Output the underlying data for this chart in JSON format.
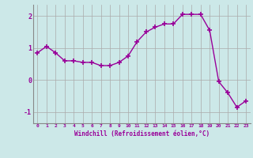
{
  "x": [
    0,
    1,
    2,
    3,
    4,
    5,
    6,
    7,
    8,
    9,
    10,
    11,
    12,
    13,
    14,
    15,
    16,
    17,
    18,
    19,
    20,
    21,
    22,
    23
  ],
  "y": [
    0.85,
    1.05,
    0.85,
    0.6,
    0.6,
    0.55,
    0.55,
    0.45,
    0.45,
    0.55,
    0.75,
    1.2,
    1.5,
    1.65,
    1.75,
    1.75,
    2.05,
    2.05,
    2.05,
    1.55,
    -0.05,
    -0.4,
    -0.85,
    -0.65
  ],
  "line_color": "#990099",
  "marker": "+",
  "bg_color": "#cce8e8",
  "grid_color": "#aaaaaa",
  "xlabel": "Windchill (Refroidissement éolien,°C)",
  "xlabel_color": "#990099",
  "ylabel_color": "#990099",
  "yticks": [
    -1,
    0,
    1,
    2
  ],
  "xticks": [
    0,
    1,
    2,
    3,
    4,
    5,
    6,
    7,
    8,
    9,
    10,
    11,
    12,
    13,
    14,
    15,
    16,
    17,
    18,
    19,
    20,
    21,
    22,
    23
  ],
  "ylim": [
    -1.35,
    2.35
  ],
  "xlim": [
    -0.5,
    23.5
  ],
  "figsize": [
    3.2,
    2.0
  ],
  "dpi": 100
}
